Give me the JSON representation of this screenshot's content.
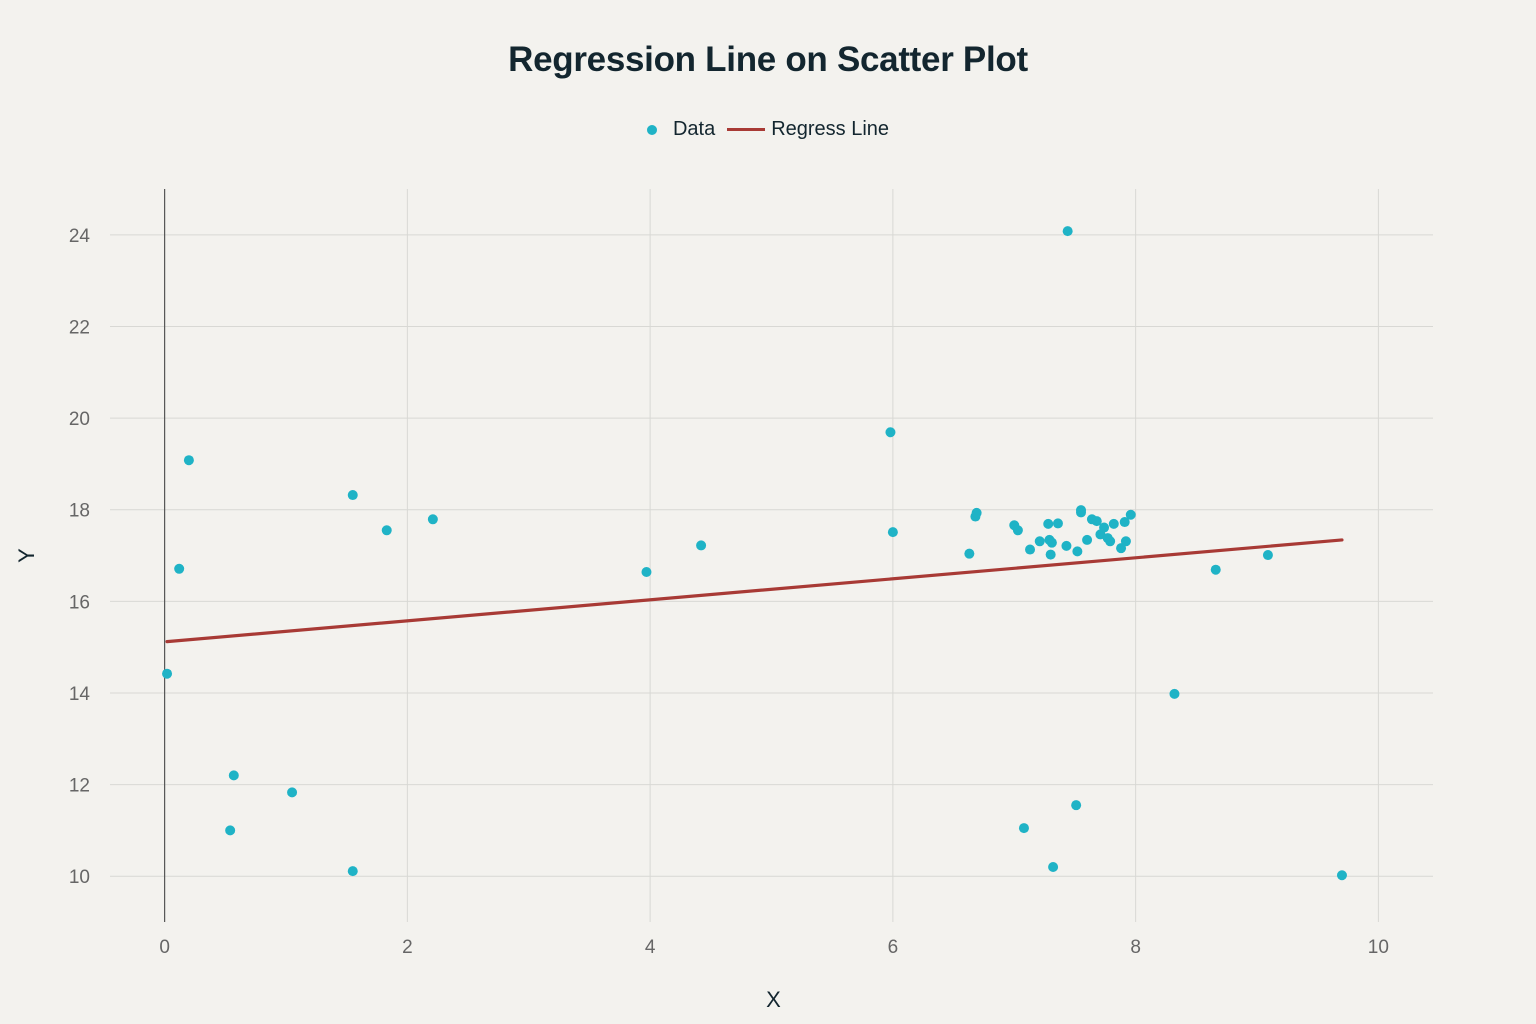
{
  "chart_data": {
    "type": "scatter",
    "title": "Regression Line on Scatter Plot",
    "xlabel": "X",
    "ylabel": "Y",
    "xlim": [
      -0.45,
      10.45
    ],
    "ylim": [
      9.0,
      25.0
    ],
    "x_ticks": [
      0,
      2,
      4,
      6,
      8,
      10
    ],
    "y_ticks": [
      10,
      12,
      14,
      16,
      18,
      20,
      22,
      24
    ],
    "grid": true,
    "legend_placement": "top-center",
    "colors": {
      "data": "#1fb3c6",
      "line": "#a83a35",
      "grid": "#d8d8d4",
      "axis": "#555555",
      "text": "#13262f",
      "tick": "#666666"
    },
    "series": [
      {
        "name": "Data",
        "mode": "markers",
        "points": [
          [
            0.02,
            14.42
          ],
          [
            0.12,
            16.71
          ],
          [
            0.2,
            19.08
          ],
          [
            0.54,
            11.0
          ],
          [
            0.57,
            12.2
          ],
          [
            1.05,
            11.83
          ],
          [
            1.55,
            18.32
          ],
          [
            1.55,
            10.11
          ],
          [
            1.83,
            17.55
          ],
          [
            2.21,
            17.79
          ],
          [
            3.97,
            16.64
          ],
          [
            4.42,
            17.22
          ],
          [
            5.98,
            19.69
          ],
          [
            6.0,
            17.51
          ],
          [
            6.63,
            17.04
          ],
          [
            6.68,
            17.85
          ],
          [
            6.69,
            17.93
          ],
          [
            7.0,
            17.66
          ],
          [
            7.03,
            17.55
          ],
          [
            7.08,
            11.05
          ],
          [
            7.13,
            17.13
          ],
          [
            7.21,
            17.31
          ],
          [
            7.28,
            17.69
          ],
          [
            7.29,
            17.34
          ],
          [
            7.3,
            17.02
          ],
          [
            7.31,
            17.28
          ],
          [
            7.32,
            10.2
          ],
          [
            7.36,
            17.7
          ],
          [
            7.43,
            17.21
          ],
          [
            7.44,
            24.08
          ],
          [
            7.51,
            11.55
          ],
          [
            7.52,
            17.09
          ],
          [
            7.55,
            17.94
          ],
          [
            7.55,
            17.99
          ],
          [
            7.6,
            17.34
          ],
          [
            7.64,
            17.79
          ],
          [
            7.68,
            17.75
          ],
          [
            7.71,
            17.46
          ],
          [
            7.74,
            17.61
          ],
          [
            7.77,
            17.38
          ],
          [
            7.79,
            17.31
          ],
          [
            7.82,
            17.69
          ],
          [
            7.88,
            17.16
          ],
          [
            7.91,
            17.73
          ],
          [
            7.92,
            17.31
          ],
          [
            7.96,
            17.89
          ],
          [
            8.32,
            13.98
          ],
          [
            8.66,
            16.69
          ],
          [
            9.09,
            17.01
          ],
          [
            9.7,
            10.02
          ]
        ]
      },
      {
        "name": "Regress Line",
        "mode": "line",
        "points": [
          [
            0.02,
            15.12
          ],
          [
            9.7,
            17.34
          ]
        ]
      }
    ]
  }
}
